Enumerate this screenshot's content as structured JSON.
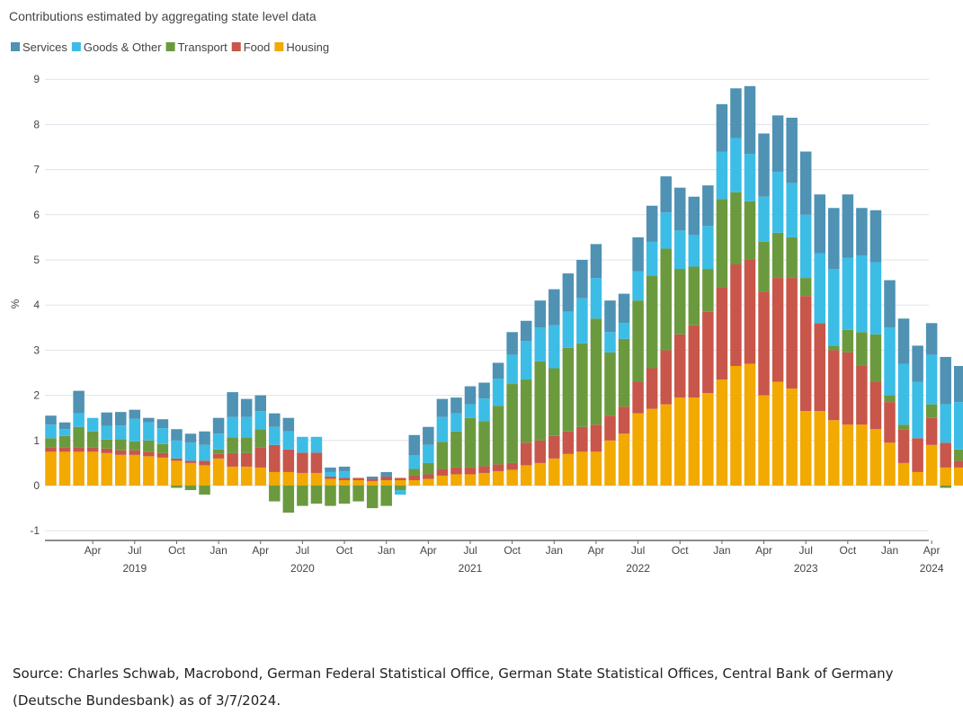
{
  "chart_data": {
    "type": "bar",
    "stacked": true,
    "title": "Contributions estimated by aggregating state level data",
    "ylabel": "%",
    "ylim": [
      -1,
      9
    ],
    "yticks": [
      -1,
      0,
      1,
      2,
      3,
      4,
      5,
      6,
      7,
      8,
      9
    ],
    "grid": true,
    "legend_position": "top-left",
    "x_start": "2019-01",
    "x_month_labels": [
      {
        "month": "2019-04",
        "label": "Apr"
      },
      {
        "month": "2019-07",
        "label": "Jul"
      },
      {
        "month": "2019-10",
        "label": "Oct"
      },
      {
        "month": "2020-01",
        "label": "Jan"
      },
      {
        "month": "2020-04",
        "label": "Apr"
      },
      {
        "month": "2020-07",
        "label": "Jul"
      },
      {
        "month": "2020-10",
        "label": "Oct"
      },
      {
        "month": "2021-01",
        "label": "Jan"
      },
      {
        "month": "2021-04",
        "label": "Apr"
      },
      {
        "month": "2021-07",
        "label": "Jul"
      },
      {
        "month": "2021-10",
        "label": "Oct"
      },
      {
        "month": "2022-01",
        "label": "Jan"
      },
      {
        "month": "2022-04",
        "label": "Apr"
      },
      {
        "month": "2022-07",
        "label": "Jul"
      },
      {
        "month": "2022-10",
        "label": "Oct"
      },
      {
        "month": "2023-01",
        "label": "Jan"
      },
      {
        "month": "2023-04",
        "label": "Apr"
      },
      {
        "month": "2023-07",
        "label": "Jul"
      },
      {
        "month": "2023-10",
        "label": "Oct"
      },
      {
        "month": "2024-01",
        "label": "Jan"
      },
      {
        "month": "2024-04",
        "label": "Apr"
      }
    ],
    "x_year_labels": [
      {
        "month": "2019-07",
        "label": "2019"
      },
      {
        "month": "2020-07",
        "label": "2020"
      },
      {
        "month": "2021-07",
        "label": "2021"
      },
      {
        "month": "2022-07",
        "label": "2022"
      },
      {
        "month": "2023-07",
        "label": "2023"
      },
      {
        "month": "2024-04",
        "label": "2024"
      }
    ],
    "series": [
      {
        "name": "Housing",
        "color": "#f2a900",
        "values": [
          0.75,
          0.75,
          0.75,
          0.75,
          0.72,
          0.68,
          0.68,
          0.65,
          0.62,
          0.55,
          0.5,
          0.45,
          0.6,
          0.42,
          0.42,
          0.4,
          0.3,
          0.3,
          0.28,
          0.28,
          0.15,
          0.12,
          0.12,
          0.1,
          0.12,
          0.12,
          0.12,
          0.15,
          0.22,
          0.25,
          0.25,
          0.28,
          0.32,
          0.35,
          0.45,
          0.5,
          0.6,
          0.7,
          0.75,
          0.75,
          1.0,
          1.15,
          1.6,
          1.7,
          1.8,
          1.95,
          1.95,
          2.05,
          2.35,
          2.65,
          2.7,
          2.0,
          2.3,
          2.15,
          1.65,
          1.65,
          1.45,
          1.35,
          1.35,
          1.25,
          0.95,
          0.5,
          0.3,
          0.9,
          0.4,
          0.4
        ]
      },
      {
        "name": "Food",
        "color": "#c8564a",
        "values": [
          0.1,
          0.1,
          0.1,
          0.1,
          0.1,
          0.1,
          0.1,
          0.1,
          0.1,
          0.05,
          0.05,
          0.1,
          0.1,
          0.3,
          0.3,
          0.45,
          0.6,
          0.5,
          0.45,
          0.45,
          0.05,
          0.05,
          0.05,
          0.05,
          0.08,
          0.05,
          0.1,
          0.1,
          0.15,
          0.15,
          0.15,
          0.15,
          0.15,
          0.15,
          0.5,
          0.5,
          0.5,
          0.5,
          0.55,
          0.6,
          0.55,
          0.6,
          0.7,
          0.9,
          1.2,
          1.4,
          1.6,
          1.8,
          2.05,
          2.25,
          2.3,
          2.3,
          2.3,
          2.45,
          2.55,
          1.95,
          1.55,
          1.6,
          1.3,
          1.05,
          0.9,
          0.75,
          0.75,
          0.6,
          0.55,
          0.15
        ]
      },
      {
        "name": "Transport",
        "color": "#6b9a3e",
        "values": [
          0.2,
          0.25,
          0.45,
          0.35,
          0.2,
          0.25,
          0.2,
          0.25,
          0.2,
          -0.05,
          -0.1,
          -0.2,
          0.1,
          0.35,
          0.35,
          0.4,
          -0.35,
          -0.6,
          -0.45,
          -0.4,
          -0.45,
          -0.4,
          -0.35,
          -0.5,
          -0.45,
          -0.1,
          0.15,
          0.25,
          0.6,
          0.8,
          1.1,
          1.0,
          1.3,
          1.75,
          1.4,
          1.75,
          1.5,
          1.85,
          1.85,
          2.35,
          1.4,
          1.5,
          1.8,
          2.05,
          2.25,
          1.45,
          1.3,
          0.95,
          1.95,
          1.6,
          1.3,
          1.1,
          1.0,
          0.9,
          0.4,
          0.0,
          0.1,
          0.5,
          0.75,
          1.05,
          0.15,
          0.1,
          0.0,
          0.3,
          -0.05,
          0.25
        ]
      },
      {
        "name": "Goods & Other",
        "color": "#3cbde6",
        "values": [
          0.3,
          0.15,
          0.3,
          0.3,
          0.3,
          0.3,
          0.5,
          0.4,
          0.35,
          0.4,
          0.4,
          0.35,
          0.35,
          0.45,
          0.45,
          0.4,
          0.4,
          0.4,
          0.35,
          0.35,
          0.1,
          0.15,
          0.0,
          0.0,
          0.0,
          -0.1,
          0.3,
          0.4,
          0.55,
          0.4,
          0.3,
          0.5,
          0.6,
          0.65,
          0.85,
          0.75,
          0.95,
          0.8,
          1.0,
          0.9,
          0.45,
          0.35,
          0.65,
          0.75,
          0.8,
          0.85,
          0.7,
          0.95,
          1.05,
          1.2,
          1.05,
          1.0,
          1.35,
          1.2,
          1.4,
          1.55,
          1.7,
          1.6,
          1.7,
          1.6,
          1.5,
          1.35,
          1.25,
          1.1,
          0.85,
          1.05
        ]
      },
      {
        "name": "Services",
        "color": "#4f92b3",
        "values": [
          0.2,
          0.15,
          0.5,
          0.0,
          0.3,
          0.3,
          0.2,
          0.1,
          0.2,
          0.25,
          0.2,
          0.3,
          0.35,
          0.55,
          0.4,
          0.35,
          0.3,
          0.3,
          0.0,
          0.0,
          0.1,
          0.1,
          0.0,
          0.05,
          0.1,
          0.0,
          0.45,
          0.4,
          0.4,
          0.35,
          0.4,
          0.35,
          0.35,
          0.5,
          0.45,
          0.6,
          0.8,
          0.85,
          0.85,
          0.75,
          0.7,
          0.65,
          0.75,
          0.8,
          0.8,
          0.95,
          0.85,
          0.9,
          1.05,
          1.1,
          1.5,
          1.4,
          1.25,
          1.45,
          1.4,
          1.3,
          1.35,
          1.4,
          1.05,
          1.15,
          1.05,
          1.0,
          0.8,
          0.7,
          1.05,
          0.8
        ]
      }
    ]
  },
  "source_text": "Source: Charles Schwab, Macrobond, German Federal Statistical Office, German State Statistical Offices, Central Bank of Germany (Deutsche Bundesbank) as of 3/7/2024."
}
